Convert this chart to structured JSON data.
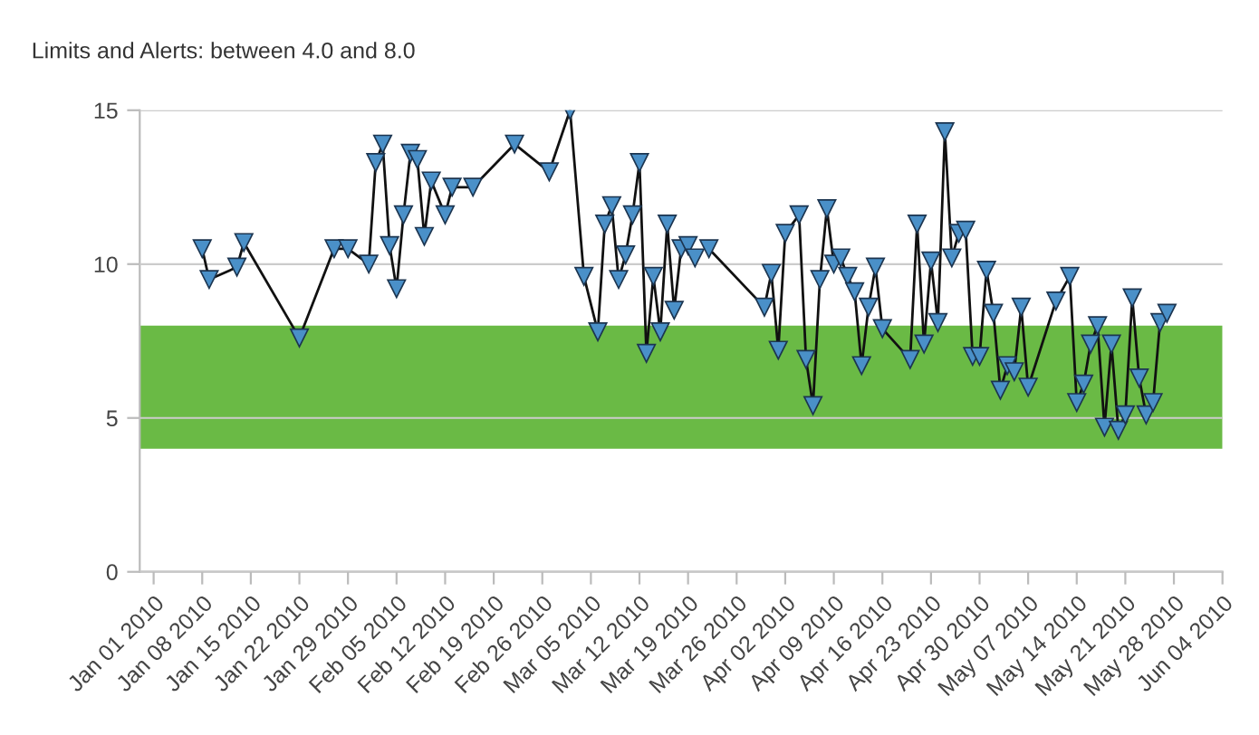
{
  "chart_data": {
    "type": "line",
    "title": "Limits and Alerts: between 4.0 and 8.0",
    "x": [
      "2010-01-08",
      "2010-01-09",
      "2010-01-13",
      "2010-01-14",
      "2010-01-22",
      "2010-01-27",
      "2010-01-29",
      "2010-02-01",
      "2010-02-02",
      "2010-02-03",
      "2010-02-04",
      "2010-02-05",
      "2010-02-06",
      "2010-02-07",
      "2010-02-08",
      "2010-02-09",
      "2010-02-10",
      "2010-02-12",
      "2010-02-13",
      "2010-02-16",
      "2010-02-22",
      "2010-02-27",
      "2010-03-02",
      "2010-03-04",
      "2010-03-06",
      "2010-03-07",
      "2010-03-08",
      "2010-03-09",
      "2010-03-10",
      "2010-03-11",
      "2010-03-12",
      "2010-03-13",
      "2010-03-14",
      "2010-03-15",
      "2010-03-16",
      "2010-03-17",
      "2010-03-18",
      "2010-03-19",
      "2010-03-20",
      "2010-03-21",
      "2010-03-22",
      "2010-03-30",
      "2010-03-31",
      "2010-04-01",
      "2010-04-02",
      "2010-04-04",
      "2010-04-05",
      "2010-04-06",
      "2010-04-07",
      "2010-04-08",
      "2010-04-09",
      "2010-04-10",
      "2010-04-11",
      "2010-04-12",
      "2010-04-13",
      "2010-04-14",
      "2010-04-15",
      "2010-04-16",
      "2010-04-20",
      "2010-04-21",
      "2010-04-22",
      "2010-04-23",
      "2010-04-24",
      "2010-04-25",
      "2010-04-26",
      "2010-04-27",
      "2010-04-28",
      "2010-04-29",
      "2010-04-30",
      "2010-05-01",
      "2010-05-02",
      "2010-05-03",
      "2010-05-04",
      "2010-05-05",
      "2010-05-06",
      "2010-05-07",
      "2010-05-11",
      "2010-05-13",
      "2010-05-14",
      "2010-05-15",
      "2010-05-16",
      "2010-05-17",
      "2010-05-18",
      "2010-05-19",
      "2010-05-20",
      "2010-05-21",
      "2010-05-22",
      "2010-05-23",
      "2010-05-24",
      "2010-05-25",
      "2010-05-26",
      "2010-05-27"
    ],
    "series": [
      {
        "color": "#4a90c8",
        "values": [
          10.5,
          9.5,
          9.9,
          10.7,
          7.6,
          10.5,
          10.5,
          10.0,
          13.3,
          13.9,
          10.6,
          9.2,
          11.6,
          13.6,
          13.4,
          10.9,
          12.7,
          11.6,
          12.5,
          12.5,
          13.9,
          13.0,
          15.0,
          9.6,
          7.8,
          11.3,
          11.9,
          9.5,
          10.3,
          11.6,
          13.3,
          7.1,
          9.6,
          7.8,
          11.3,
          8.5,
          10.5,
          10.6,
          10.2,
          null,
          10.5,
          8.6,
          9.7,
          7.2,
          11.0,
          11.6,
          6.9,
          5.4,
          9.5,
          11.8,
          10.0,
          10.2,
          9.6,
          9.1,
          6.7,
          8.6,
          9.9,
          7.9,
          6.9,
          11.3,
          7.4,
          10.1,
          8.1,
          14.3,
          10.2,
          11.0,
          11.1,
          7.0,
          7.0,
          9.8,
          8.4,
          5.9,
          6.7,
          6.5,
          8.6,
          6.0,
          8.8,
          9.6,
          5.5,
          6.1,
          7.4,
          8.0,
          4.7,
          7.4,
          4.6,
          5.1,
          8.9,
          6.3,
          5.1,
          5.5,
          8.1,
          8.4
        ]
      }
    ],
    "xlim": [
      "2009-12-30",
      "2010-06-04"
    ],
    "xticks": [
      {
        "value": "2010-01-01",
        "label": "Jan 01 2010"
      },
      {
        "value": "2010-01-08",
        "label": "Jan 08 2010"
      },
      {
        "value": "2010-01-15",
        "label": "Jan 15 2010"
      },
      {
        "value": "2010-01-22",
        "label": "Jan 22 2010"
      },
      {
        "value": "2010-01-29",
        "label": "Jan 29 2010"
      },
      {
        "value": "2010-02-05",
        "label": "Feb 05 2010"
      },
      {
        "value": "2010-02-12",
        "label": "Feb 12 2010"
      },
      {
        "value": "2010-02-19",
        "label": "Feb 19 2010"
      },
      {
        "value": "2010-02-26",
        "label": "Feb 26 2010"
      },
      {
        "value": "2010-03-05",
        "label": "Mar 05 2010"
      },
      {
        "value": "2010-03-12",
        "label": "Mar 12 2010"
      },
      {
        "value": "2010-03-19",
        "label": "Mar 19 2010"
      },
      {
        "value": "2010-03-26",
        "label": "Mar 26 2010"
      },
      {
        "value": "2010-04-02",
        "label": "Apr 02 2010"
      },
      {
        "value": "2010-04-09",
        "label": "Apr 09 2010"
      },
      {
        "value": "2010-04-16",
        "label": "Apr 16 2010"
      },
      {
        "value": "2010-04-23",
        "label": "Apr 23 2010"
      },
      {
        "value": "2010-04-30",
        "label": "Apr 30 2010"
      },
      {
        "value": "2010-05-07",
        "label": "May 07 2010"
      },
      {
        "value": "2010-05-14",
        "label": "May 14 2010"
      },
      {
        "value": "2010-05-21",
        "label": "May 21 2010"
      },
      {
        "value": "2010-05-28",
        "label": "May 28 2010"
      },
      {
        "value": "2010-06-04",
        "label": "Jun 04 2010"
      }
    ],
    "ylim": [
      0,
      15
    ],
    "yticks": [
      0,
      5,
      10,
      15
    ],
    "bands": [
      {
        "axis": "y",
        "from": 4,
        "to": 8,
        "color": "#6aba45"
      }
    ],
    "grid": "y",
    "marker": "triangle",
    "line_style": "solid"
  }
}
